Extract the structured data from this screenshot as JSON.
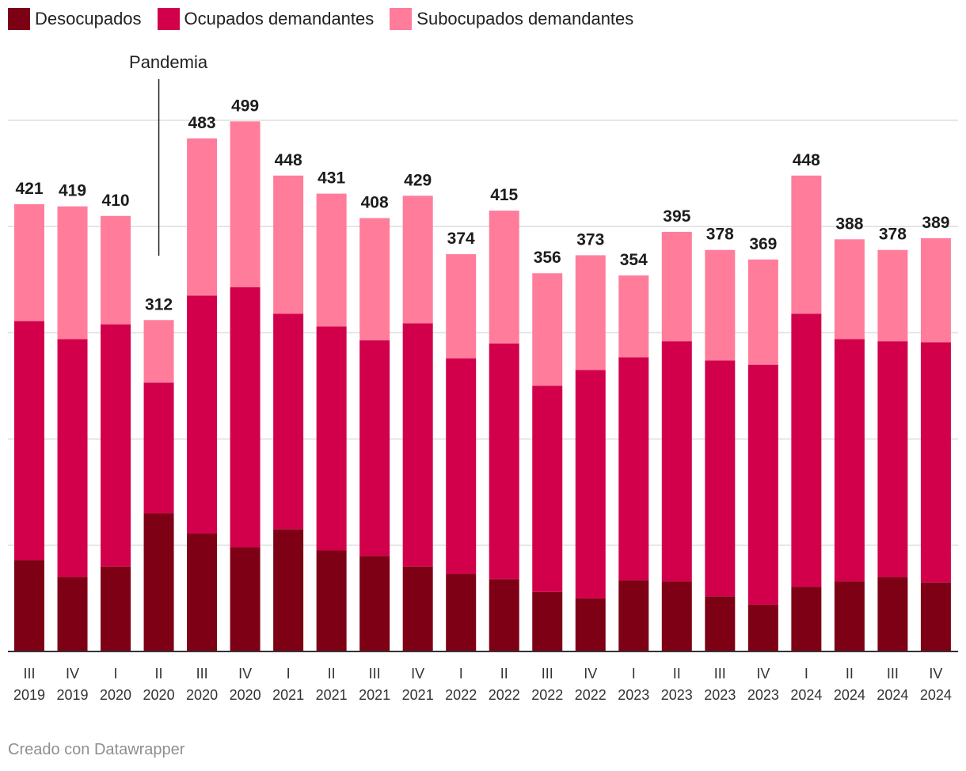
{
  "chart_data": {
    "type": "bar",
    "stacked": true,
    "categories": [
      [
        "III",
        "2019"
      ],
      [
        "IV",
        "2019"
      ],
      [
        "I",
        "2020"
      ],
      [
        "II",
        "2020"
      ],
      [
        "III",
        "2020"
      ],
      [
        "IV",
        "2020"
      ],
      [
        "I",
        "2021"
      ],
      [
        "II",
        "2021"
      ],
      [
        "III",
        "2021"
      ],
      [
        "IV",
        "2021"
      ],
      [
        "I",
        "2022"
      ],
      [
        "II",
        "2022"
      ],
      [
        "III",
        "2022"
      ],
      [
        "IV",
        "2022"
      ],
      [
        "I",
        "2023"
      ],
      [
        "II",
        "2023"
      ],
      [
        "III",
        "2023"
      ],
      [
        "IV",
        "2023"
      ],
      [
        "I",
        "2024"
      ],
      [
        "II",
        "2024"
      ],
      [
        "III",
        "2024"
      ],
      [
        "IV",
        "2024"
      ]
    ],
    "series": [
      {
        "name": "Desocupados",
        "color": "#7d0015",
        "values": [
          86,
          70,
          80,
          130,
          111,
          98,
          115,
          95,
          90,
          80,
          73,
          68,
          56,
          50,
          67,
          66,
          52,
          44,
          61,
          66,
          70,
          65
        ]
      },
      {
        "name": "Ocupados demandantes",
        "color": "#d2004b",
        "values": [
          225,
          224,
          228,
          123,
          224,
          245,
          203,
          211,
          203,
          229,
          203,
          222,
          194,
          215,
          210,
          226,
          222,
          226,
          257,
          228,
          222,
          226
        ]
      },
      {
        "name": "Subocupados demandantes",
        "color": "#ff7d9b",
        "values": [
          110,
          125,
          102,
          59,
          148,
          156,
          130,
          125,
          115,
          120,
          98,
          125,
          106,
          108,
          77,
          103,
          104,
          99,
          130,
          94,
          86,
          98
        ]
      }
    ],
    "totals": [
      421,
      419,
      410,
      312,
      483,
      499,
      448,
      431,
      408,
      429,
      374,
      415,
      356,
      373,
      354,
      395,
      378,
      369,
      448,
      388,
      378,
      389
    ],
    "ylim": [
      0,
      500
    ],
    "gridlines": [
      0,
      100,
      200,
      300,
      400,
      500
    ],
    "annotation": {
      "label": "Pandemia",
      "category_index": 3
    },
    "grid": true,
    "legend_position": "top-left"
  },
  "legend": [
    {
      "label": "Desocupados",
      "color": "#7d0015"
    },
    {
      "label": "Ocupados demandantes",
      "color": "#d2004b"
    },
    {
      "label": "Subocupados demandantes",
      "color": "#ff7d9b"
    }
  ],
  "footer": "Creado con Datawrapper"
}
